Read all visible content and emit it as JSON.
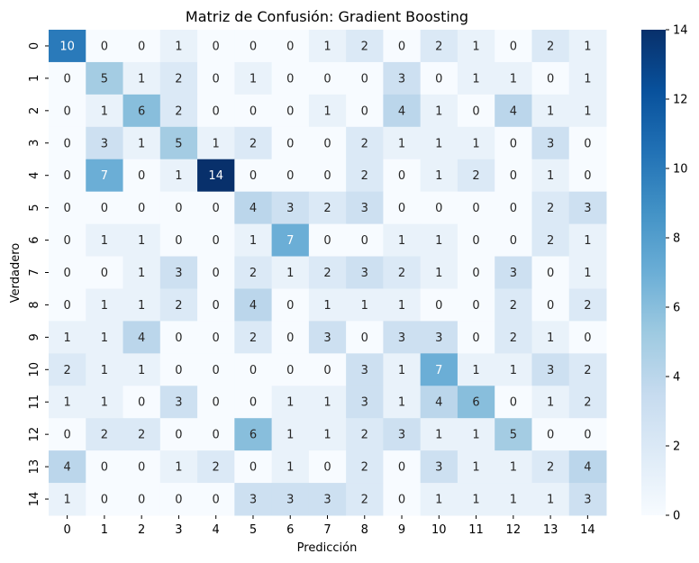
{
  "chart_data": {
    "type": "heatmap",
    "title": "Matriz de Confusión: Gradient Boosting",
    "xlabel": "Predicción",
    "ylabel": "Verdadero",
    "x_categories": [
      "0",
      "1",
      "2",
      "3",
      "4",
      "5",
      "6",
      "7",
      "8",
      "9",
      "10",
      "11",
      "12",
      "13",
      "14"
    ],
    "y_categories": [
      "0",
      "1",
      "2",
      "3",
      "4",
      "5",
      "6",
      "7",
      "8",
      "9",
      "10",
      "11",
      "12",
      "13",
      "14"
    ],
    "values": [
      [
        10,
        0,
        0,
        1,
        0,
        0,
        0,
        1,
        2,
        0,
        2,
        1,
        0,
        2,
        1
      ],
      [
        0,
        5,
        1,
        2,
        0,
        1,
        0,
        0,
        0,
        3,
        0,
        1,
        1,
        0,
        1
      ],
      [
        0,
        1,
        6,
        2,
        0,
        0,
        0,
        1,
        0,
        4,
        1,
        0,
        4,
        1,
        1
      ],
      [
        0,
        3,
        1,
        5,
        1,
        2,
        0,
        0,
        2,
        1,
        1,
        1,
        0,
        3,
        0
      ],
      [
        0,
        7,
        0,
        1,
        14,
        0,
        0,
        0,
        2,
        0,
        1,
        2,
        0,
        1,
        0
      ],
      [
        0,
        0,
        0,
        0,
        0,
        4,
        3,
        2,
        3,
        0,
        0,
        0,
        0,
        2,
        3
      ],
      [
        0,
        1,
        1,
        0,
        0,
        1,
        7,
        0,
        0,
        1,
        1,
        0,
        0,
        2,
        1
      ],
      [
        0,
        0,
        1,
        3,
        0,
        2,
        1,
        2,
        3,
        2,
        1,
        0,
        3,
        0,
        1
      ],
      [
        0,
        1,
        1,
        2,
        0,
        4,
        0,
        1,
        1,
        1,
        0,
        0,
        2,
        0,
        2
      ],
      [
        1,
        1,
        4,
        0,
        0,
        2,
        0,
        3,
        0,
        3,
        3,
        0,
        2,
        1,
        0
      ],
      [
        2,
        1,
        1,
        0,
        0,
        0,
        0,
        0,
        3,
        1,
        7,
        1,
        1,
        3,
        2
      ],
      [
        1,
        1,
        0,
        3,
        0,
        0,
        1,
        1,
        3,
        1,
        4,
        6,
        0,
        1,
        2
      ],
      [
        0,
        2,
        2,
        0,
        0,
        6,
        1,
        1,
        2,
        3,
        1,
        1,
        5,
        0,
        0
      ],
      [
        4,
        0,
        0,
        1,
        2,
        0,
        1,
        0,
        2,
        0,
        3,
        1,
        1,
        2,
        4
      ],
      [
        1,
        0,
        0,
        0,
        0,
        3,
        3,
        3,
        2,
        0,
        1,
        1,
        1,
        1,
        3
      ]
    ],
    "colorscale": "Blues",
    "vmin": 0,
    "vmax": 14,
    "colorbar_ticks": [
      "0",
      "2",
      "4",
      "6",
      "8",
      "10",
      "12",
      "14"
    ],
    "annotations": true
  }
}
